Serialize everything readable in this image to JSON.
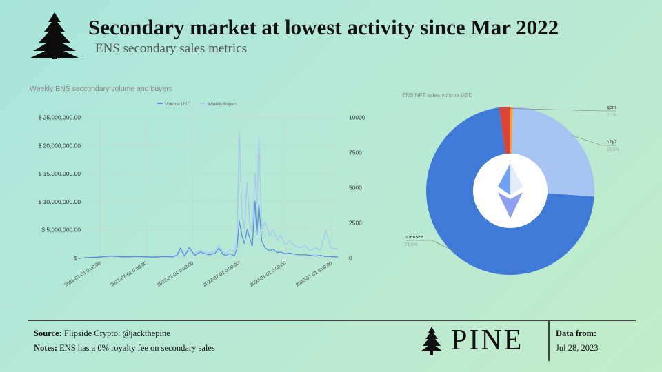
{
  "header": {
    "title": "Secondary market at lowest activity since Mar 2022",
    "subtitle": "ENS secondary sales metrics"
  },
  "footer": {
    "source_label": "Source:",
    "source_text": " Flipside Crypto: @jackthepine",
    "notes_label": "Notes:",
    "notes_text": " ENS has a 0% royalty fee on secondary sales",
    "brand": "PINE",
    "data_from_label": "Data from:",
    "data_date": "Jul 28, 2023"
  },
  "colors": {
    "volume": "#5b8de4",
    "buyers": "#a9c6f2",
    "opensea": "#3f7ad8",
    "x2y2": "#a6c3f1",
    "gem": "#dd4436",
    "other": "#f2a51f"
  },
  "chart_data": [
    {
      "type": "line",
      "title": "Weekly ENS seccondary volume and buyers",
      "xlabel": "",
      "ylabel": "",
      "y2label": "",
      "x_ticks": [
        "2021-01-01 0:00:00",
        "2021-07-01 0:00:00",
        "2022-01-01 0:00:00",
        "2022-07-01 0:00:00",
        "2023-01-01 0:00:00",
        "2023-07-01 0:00:00"
      ],
      "y_ticks": [
        "$ -",
        "$ 5,000,000.00",
        "$ 10,000,000.00",
        "$ 15,000,000.00",
        "$ 20,000,000.00",
        "$ 25,000,000.00"
      ],
      "y2_ticks": [
        "0",
        "2500",
        "5000",
        "7500",
        "10000"
      ],
      "ylim": [
        0,
        25000000
      ],
      "y2lim": [
        0,
        10000
      ],
      "xlim": [
        "2020-11-01",
        "2023-07-28"
      ],
      "legend": "top",
      "grid": true,
      "series": [
        {
          "name": "Volume USD",
          "axis": "left",
          "color": "#5b8de4",
          "x": [
            "2020-11-01",
            "2021-01-01",
            "2021-02-15",
            "2021-04-01",
            "2021-06-01",
            "2021-08-01",
            "2021-09-15",
            "2021-10-15",
            "2021-11-01",
            "2021-11-15",
            "2021-12-01",
            "2021-12-20",
            "2022-01-10",
            "2022-02-01",
            "2022-02-20",
            "2022-03-10",
            "2022-04-01",
            "2022-04-15",
            "2022-05-01",
            "2022-05-15",
            "2022-05-25",
            "2022-06-05",
            "2022-06-15",
            "2022-06-25",
            "2022-07-05",
            "2022-07-15",
            "2022-07-25",
            "2022-08-05",
            "2022-08-15",
            "2022-08-25",
            "2022-09-05",
            "2022-09-12",
            "2022-09-20",
            "2022-10-01",
            "2022-10-15",
            "2022-11-01",
            "2022-11-15",
            "2022-12-01",
            "2022-12-15",
            "2023-01-01",
            "2023-01-20",
            "2023-02-10",
            "2023-03-01",
            "2023-03-20",
            "2023-04-10",
            "2023-05-01",
            "2023-05-20",
            "2023-06-10",
            "2023-07-01",
            "2023-07-28"
          ],
          "y": [
            0,
            100000,
            300000,
            150000,
            200000,
            100000,
            200000,
            150000,
            400000,
            1700000,
            300000,
            1800000,
            400000,
            1000000,
            700000,
            500000,
            800000,
            1700000,
            600000,
            400000,
            700000,
            600000,
            300000,
            1500000,
            6500000,
            4000000,
            2500000,
            5000000,
            3500000,
            2000000,
            10000000,
            4000000,
            9500000,
            3000000,
            1700000,
            1200000,
            1500000,
            900000,
            1000000,
            700000,
            800000,
            600000,
            500000,
            500000,
            400000,
            300000,
            400000,
            200000,
            200000,
            100000
          ]
        },
        {
          "name": "Weekly Buyers",
          "axis": "right",
          "color": "#a9c6f2",
          "x": [
            "2020-11-01",
            "2021-01-01",
            "2021-02-15",
            "2021-04-01",
            "2021-06-01",
            "2021-08-01",
            "2021-09-15",
            "2021-10-15",
            "2021-11-01",
            "2021-11-15",
            "2021-12-01",
            "2021-12-20",
            "2022-01-10",
            "2022-02-01",
            "2022-02-20",
            "2022-03-10",
            "2022-04-01",
            "2022-04-15",
            "2022-05-01",
            "2022-05-15",
            "2022-05-25",
            "2022-06-05",
            "2022-06-15",
            "2022-06-25",
            "2022-07-05",
            "2022-07-15",
            "2022-07-25",
            "2022-08-05",
            "2022-08-15",
            "2022-08-25",
            "2022-09-05",
            "2022-09-12",
            "2022-09-20",
            "2022-10-01",
            "2022-10-15",
            "2022-11-01",
            "2022-11-15",
            "2022-12-01",
            "2022-12-15",
            "2023-01-01",
            "2023-01-20",
            "2023-02-10",
            "2023-03-01",
            "2023-03-20",
            "2023-04-10",
            "2023-05-01",
            "2023-05-20",
            "2023-06-10",
            "2023-07-01",
            "2023-07-28"
          ],
          "y": [
            0,
            50,
            100,
            80,
            100,
            60,
            100,
            80,
            200,
            400,
            200,
            500,
            300,
            500,
            400,
            300,
            500,
            900,
            400,
            300,
            500,
            600,
            400,
            1100,
            8900,
            3000,
            2000,
            5400,
            2400,
            1800,
            6000,
            3500,
            8700,
            2000,
            2600,
            1500,
            2000,
            1200,
            1600,
            900,
            1200,
            800,
            700,
            900,
            500,
            700,
            500,
            1900,
            700,
            600
          ]
        }
      ]
    },
    {
      "type": "pie",
      "title": "ENS NFT sales volume USD",
      "legend": "labels",
      "slices": [
        {
          "label": "opensea",
          "value": 71.8,
          "display": "71.8%",
          "color": "#3f7ad8"
        },
        {
          "label": "x2y2",
          "value": 25.6,
          "display": "25.6%",
          "color": "#a6c3f1"
        },
        {
          "label": "gem",
          "value": 2.1,
          "display": "2.1%",
          "color": "#dd4436"
        },
        {
          "label": "",
          "value": 0.5,
          "display": "",
          "color": "#f2a51f"
        }
      ]
    }
  ]
}
